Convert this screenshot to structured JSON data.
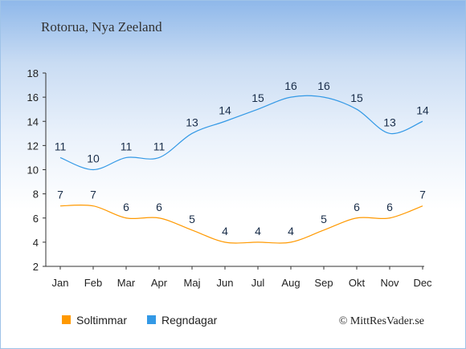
{
  "chart_data": {
    "type": "line",
    "title": "Rotorua, Nya Zeeland",
    "categories": [
      "Jan",
      "Feb",
      "Mar",
      "Apr",
      "Maj",
      "Jun",
      "Jul",
      "Aug",
      "Sep",
      "Okt",
      "Nov",
      "Dec"
    ],
    "ylim": [
      2,
      18
    ],
    "yticks": [
      2,
      4,
      6,
      8,
      10,
      12,
      14,
      16,
      18
    ],
    "grid": false,
    "legend_placement": "bottom-left",
    "series": [
      {
        "name": "Soltimmar",
        "color": "#ff9900",
        "values": [
          7,
          7,
          6,
          6,
          5,
          4,
          4,
          4,
          5,
          6,
          6,
          7
        ]
      },
      {
        "name": "Regndagar",
        "color": "#3399e6",
        "values": [
          11,
          10,
          11,
          11,
          13,
          14,
          15,
          16,
          16,
          15,
          13,
          14
        ]
      }
    ]
  },
  "credit": "© MittResVader.se"
}
